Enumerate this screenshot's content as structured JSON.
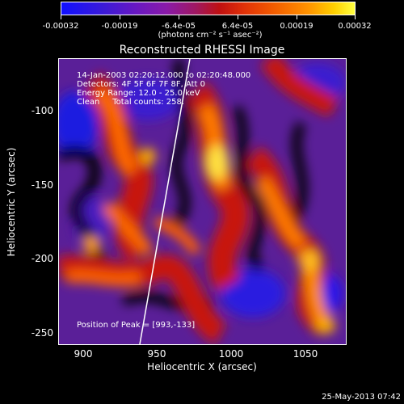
{
  "colorbar": {
    "labels": [
      "-0.00032",
      "-0.00019",
      "-6.4e-05",
      "6.4e-05",
      "0.00019",
      "0.00032"
    ],
    "units": "(photons cm⁻² s⁻¹ asec⁻²)"
  },
  "title": "Reconstructed RHESSI Image",
  "info": {
    "time": "14-Jan-2003 02:20:12.000 to 02:20:48.000",
    "detectors": "Detectors: 4F 5F 6F 7F 8F, Att 0",
    "energy": "Energy Range: 12.0 - 25.0 keV",
    "clean": "Clean     Total counts: 258."
  },
  "peak": "Position of Peak = [993,-133]",
  "axes": {
    "xlabel": "Heliocentric X (arcsec)",
    "ylabel": "Heliocentric Y (arcsec)",
    "xticks": [
      "900",
      "950",
      "1000",
      "1050"
    ],
    "yticks": [
      "-100",
      "-150",
      "-200",
      "-250"
    ]
  },
  "date_stamp": "25-May-2013 07:42"
}
